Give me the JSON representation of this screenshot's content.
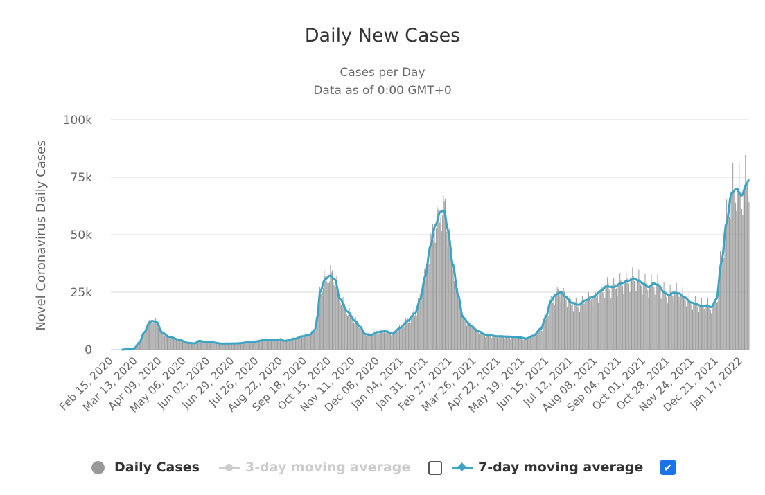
{
  "chart_data": {
    "type": "bar",
    "title": "Daily New Cases",
    "subtitle_lines": [
      "Cases per Day",
      "Data as of 0:00 GMT+0"
    ],
    "ylabel": "Novel Coronavirus Daily Cases",
    "xlabel": "",
    "ylim": [
      0,
      100000
    ],
    "yticks": [
      0,
      25000,
      50000,
      75000,
      100000
    ],
    "ytick_labels": [
      "0",
      "25k",
      "50k",
      "75k",
      "100k"
    ],
    "grid": true,
    "x_start_date": "Feb 15, 2020",
    "xtick_interval_days": 27,
    "xtick_labels": [
      "Feb 15, 2020",
      "Mar 13, 2020",
      "Apr 09, 2020",
      "May 06, 2020",
      "Jun 02, 2020",
      "Jun 29, 2020",
      "Jul 26, 2020",
      "Aug 22, 2020",
      "Sep 18, 2020",
      "Oct 15, 2020",
      "Nov 11, 2020",
      "Dec 08, 2020",
      "Jan 04, 2021",
      "Jan 31, 2021",
      "Feb 27, 2021",
      "Mar 26, 2021",
      "Apr 22, 2021",
      "May 19, 2021",
      "Jun 15, 2021",
      "Jul 12, 2021",
      "Aug 08, 2021",
      "Sep 04, 2021",
      "Oct 01, 2021",
      "Oct 28, 2021",
      "Nov 24, 2021",
      "Dec 21, 2021",
      "Jan 17, 2022"
    ],
    "x_end_day": 712,
    "bars_start_day": 20,
    "series": [
      {
        "name": "Daily Cases",
        "type": "bar",
        "color": "#999999",
        "note": "daily values derived from 7-day average keypoints with weekly variation",
        "weekly_variation": [
          1.08,
          1.12,
          1.05,
          0.98,
          0.92,
          0.88,
          0.97
        ]
      },
      {
        "name": "7-day moving average",
        "type": "line",
        "color": "#3ba4c5",
        "visible": true,
        "keypoints_day_value": [
          [
            12,
            0
          ],
          [
            22,
            500
          ],
          [
            26,
            3000
          ],
          [
            30,
            7500
          ],
          [
            34,
            11500
          ],
          [
            36,
            12500
          ],
          [
            40,
            12000
          ],
          [
            44,
            7500
          ],
          [
            50,
            5500
          ],
          [
            58,
            4300
          ],
          [
            64,
            3000
          ],
          [
            70,
            2700
          ],
          [
            74,
            3800
          ],
          [
            78,
            3400
          ],
          [
            84,
            3200
          ],
          [
            92,
            2600
          ],
          [
            104,
            2700
          ],
          [
            116,
            3400
          ],
          [
            128,
            4200
          ],
          [
            138,
            4400
          ],
          [
            142,
            3800
          ],
          [
            150,
            4700
          ],
          [
            156,
            5800
          ],
          [
            162,
            6500
          ],
          [
            166,
            8500
          ],
          [
            168,
            14000
          ],
          [
            170,
            25000
          ],
          [
            174,
            30500
          ],
          [
            178,
            32200
          ],
          [
            182,
            30500
          ],
          [
            186,
            22000
          ],
          [
            192,
            16500
          ],
          [
            198,
            12500
          ],
          [
            202,
            10000
          ],
          [
            206,
            6800
          ],
          [
            210,
            6200
          ],
          [
            216,
            7600
          ],
          [
            222,
            8000
          ],
          [
            228,
            7000
          ],
          [
            234,
            9500
          ],
          [
            240,
            12500
          ],
          [
            246,
            16000
          ],
          [
            250,
            22000
          ],
          [
            254,
            32000
          ],
          [
            258,
            45000
          ],
          [
            262,
            54000
          ],
          [
            266,
            60000
          ],
          [
            269,
            60500
          ],
          [
            272,
            52000
          ],
          [
            276,
            37000
          ],
          [
            280,
            24000
          ],
          [
            284,
            14000
          ],
          [
            290,
            10500
          ],
          [
            296,
            8000
          ],
          [
            302,
            6500
          ],
          [
            312,
            5800
          ],
          [
            322,
            5600
          ],
          [
            330,
            5300
          ],
          [
            334,
            4800
          ],
          [
            340,
            6000
          ],
          [
            346,
            9000
          ],
          [
            350,
            14000
          ],
          [
            354,
            21000
          ],
          [
            358,
            24000
          ],
          [
            362,
            25000
          ],
          [
            366,
            23000
          ],
          [
            370,
            20500
          ],
          [
            376,
            19500
          ],
          [
            382,
            21500
          ],
          [
            388,
            23000
          ],
          [
            394,
            25500
          ],
          [
            398,
            27500
          ],
          [
            404,
            27200
          ],
          [
            410,
            28800
          ],
          [
            416,
            30000
          ],
          [
            420,
            31000
          ],
          [
            424,
            30000
          ],
          [
            428,
            28500
          ],
          [
            432,
            27200
          ],
          [
            436,
            28800
          ],
          [
            440,
            28000
          ],
          [
            444,
            25000
          ],
          [
            448,
            23800
          ],
          [
            452,
            24800
          ],
          [
            456,
            24500
          ],
          [
            460,
            23000
          ],
          [
            466,
            20500
          ],
          [
            470,
            19800
          ],
          [
            474,
            19000
          ],
          [
            478,
            19200
          ],
          [
            482,
            18500
          ],
          [
            486,
            22000
          ],
          [
            490,
            38000
          ],
          [
            494,
            55000
          ],
          [
            498,
            68000
          ],
          [
            502,
            70000
          ],
          [
            506,
            67000
          ],
          [
            510,
            72000
          ],
          [
            512,
            74000
          ]
        ]
      }
    ],
    "legend": {
      "position": "bottom",
      "items": [
        {
          "label": "Daily Cases",
          "marker": "circle",
          "enabled": true
        },
        {
          "label": "3-day moving average",
          "marker": "line-circle",
          "enabled": false,
          "checkbox": false
        },
        {
          "label": "7-day moving average",
          "marker": "line-diamond",
          "enabled": true,
          "checkbox": true
        }
      ]
    }
  }
}
